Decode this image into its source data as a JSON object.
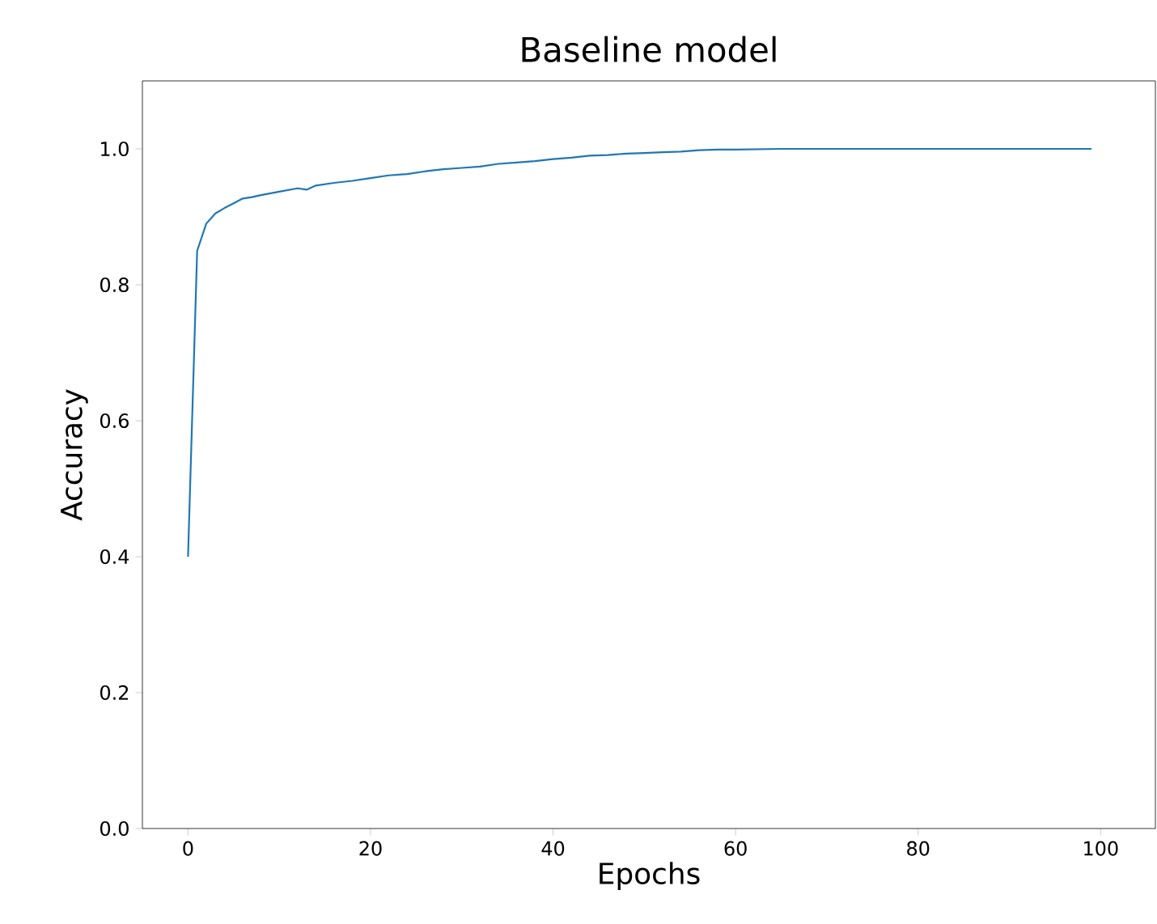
{
  "chart_data": {
    "type": "line",
    "title": "Baseline model",
    "xlabel": "Epochs",
    "ylabel": "Accuracy",
    "x": [
      0,
      1,
      2,
      3,
      4,
      5,
      6,
      7,
      8,
      10,
      12,
      13,
      14,
      16,
      18,
      20,
      22,
      24,
      26,
      28,
      30,
      32,
      34,
      36,
      38,
      40,
      42,
      44,
      46,
      48,
      50,
      52,
      54,
      56,
      58,
      60,
      65,
      80,
      99
    ],
    "series": [
      {
        "color": "#1f77b4",
        "values": [
          0.4,
          0.85,
          0.89,
          0.905,
          0.913,
          0.92,
          0.927,
          0.929,
          0.932,
          0.937,
          0.942,
          0.94,
          0.946,
          0.95,
          0.953,
          0.957,
          0.961,
          0.963,
          0.967,
          0.97,
          0.972,
          0.974,
          0.978,
          0.98,
          0.982,
          0.985,
          0.987,
          0.99,
          0.991,
          0.993,
          0.994,
          0.995,
          0.996,
          0.998,
          0.999,
          0.999,
          1.0,
          1.0,
          1.0
        ]
      }
    ],
    "xlim": [
      -5,
      106
    ],
    "ylim": [
      0,
      1.1
    ],
    "xticks": [
      0,
      20,
      40,
      60,
      80,
      100
    ],
    "yticks": [
      {
        "value": 0,
        "label": "0.0"
      },
      {
        "value": 0.2,
        "label": "0.2"
      },
      {
        "value": 0.4,
        "label": "0.4"
      },
      {
        "value": 0.6,
        "label": "0.6"
      },
      {
        "value": 0.8,
        "label": "0.8"
      },
      {
        "value": 1.0,
        "label": "1.0"
      }
    ],
    "grid": false,
    "legend": false,
    "marker": "none",
    "line_style": "solid"
  }
}
